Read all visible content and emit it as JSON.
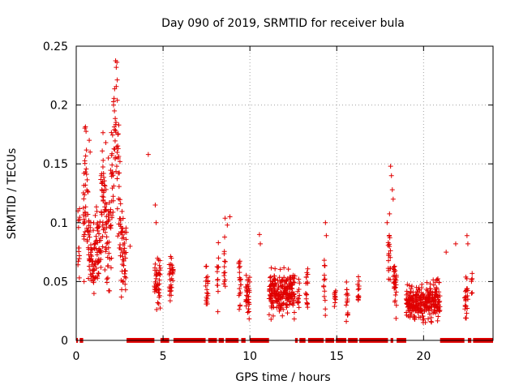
{
  "chart_data": {
    "type": "scatter",
    "title": "Day 090 of 2019, SRMTID for receiver bula",
    "xlabel": "GPS time / hours",
    "ylabel": "SRMTID / TECUs",
    "xlim": [
      0,
      24
    ],
    "ylim": [
      0,
      0.25
    ],
    "x_ticks": [
      0,
      5,
      10,
      15,
      20
    ],
    "x_tick_labels": [
      "0",
      "5",
      "10",
      "15",
      "20"
    ],
    "y_ticks": [
      0,
      0.05,
      0.1,
      0.15,
      0.2,
      0.25
    ],
    "y_tick_labels": [
      "0",
      "0.05",
      "0.1",
      "0.15",
      "0.2",
      "0.25"
    ],
    "grid": true,
    "marker": "+",
    "series_color": "#e00000",
    "envelope": [
      [
        0.0,
        0.078
      ],
      [
        0.25,
        0.085
      ],
      [
        0.4,
        0.1
      ],
      [
        0.55,
        0.13
      ],
      [
        0.7,
        0.09
      ],
      [
        0.9,
        0.06
      ],
      [
        1.1,
        0.07
      ],
      [
        1.4,
        0.09
      ],
      [
        1.6,
        0.13
      ],
      [
        1.8,
        0.08
      ],
      [
        1.95,
        0.1
      ],
      [
        2.15,
        0.16
      ],
      [
        2.3,
        0.18
      ],
      [
        2.45,
        0.12
      ],
      [
        2.6,
        0.075
      ],
      [
        2.8,
        0.07
      ],
      [
        2.9,
        0.065
      ],
      [
        4.4,
        0.05
      ],
      [
        4.6,
        0.05
      ],
      [
        5.0,
        0.045
      ],
      [
        5.5,
        0.05
      ],
      [
        6.5,
        0.055
      ],
      [
        7.5,
        0.045
      ],
      [
        8.0,
        0.055
      ],
      [
        8.5,
        0.065
      ],
      [
        8.9,
        0.08
      ],
      [
        9.2,
        0.06
      ],
      [
        9.6,
        0.04
      ],
      [
        10.0,
        0.04
      ],
      [
        10.5,
        0.045
      ],
      [
        10.9,
        0.04
      ],
      [
        11.0,
        0.04
      ],
      [
        12.5,
        0.04
      ],
      [
        12.9,
        0.035
      ],
      [
        13.4,
        0.045
      ],
      [
        13.8,
        0.055
      ],
      [
        14.2,
        0.05
      ],
      [
        14.7,
        0.035
      ],
      [
        15.3,
        0.03
      ],
      [
        15.8,
        0.035
      ],
      [
        16.3,
        0.04
      ],
      [
        16.7,
        0.045
      ],
      [
        17.0,
        0.06
      ],
      [
        17.3,
        0.07
      ],
      [
        17.7,
        0.065
      ],
      [
        18.0,
        0.08
      ],
      [
        18.3,
        0.05
      ],
      [
        18.6,
        0.035
      ],
      [
        18.8,
        0.03
      ],
      [
        18.9,
        0.03
      ],
      [
        20.8,
        0.035
      ],
      [
        21.2,
        0.04
      ],
      [
        21.6,
        0.045
      ],
      [
        22.0,
        0.035
      ],
      [
        22.3,
        0.03
      ],
      [
        22.6,
        0.045
      ],
      [
        22.8,
        0.05
      ]
    ],
    "outliers": [
      [
        2.15,
        0.2
      ],
      [
        2.2,
        0.195
      ],
      [
        4.15,
        0.158
      ],
      [
        4.55,
        0.115
      ],
      [
        4.6,
        0.1
      ],
      [
        8.85,
        0.105
      ],
      [
        8.7,
        0.098
      ],
      [
        10.55,
        0.09
      ],
      [
        10.6,
        0.082
      ],
      [
        14.35,
        0.1
      ],
      [
        14.4,
        0.089
      ],
      [
        18.1,
        0.148
      ],
      [
        18.15,
        0.14
      ],
      [
        18.2,
        0.128
      ],
      [
        18.25,
        0.12
      ],
      [
        17.9,
        0.1
      ],
      [
        0.75,
        0.17
      ],
      [
        0.8,
        0.16
      ],
      [
        1.5,
        0.161
      ],
      [
        1.55,
        0.153
      ],
      [
        1.85,
        0.155
      ],
      [
        2.45,
        0.183
      ],
      [
        2.4,
        0.175
      ],
      [
        22.5,
        0.089
      ],
      [
        22.55,
        0.082
      ],
      [
        21.85,
        0.082
      ],
      [
        21.3,
        0.075
      ],
      [
        0.1,
        0.11
      ],
      [
        3.1,
        0.08
      ],
      [
        0.45,
        0.05
      ]
    ],
    "data_gaps": [
      [
        0.0,
        0.1
      ],
      [
        0.2,
        0.4
      ],
      [
        2.9,
        4.5
      ],
      [
        4.85,
        5.35
      ],
      [
        5.6,
        7.45
      ],
      [
        7.6,
        8.1
      ],
      [
        8.2,
        8.5
      ],
      [
        8.6,
        9.35
      ],
      [
        9.5,
        9.75
      ],
      [
        10.0,
        11.1
      ],
      [
        12.6,
        12.75
      ],
      [
        12.85,
        13.2
      ],
      [
        13.35,
        14.25
      ],
      [
        14.35,
        14.85
      ],
      [
        14.95,
        15.55
      ],
      [
        15.65,
        16.2
      ],
      [
        16.3,
        17.95
      ],
      [
        18.1,
        18.25
      ],
      [
        18.45,
        19.0
      ],
      [
        20.95,
        22.35
      ],
      [
        22.55,
        22.75
      ],
      [
        22.85,
        24.0
      ]
    ]
  }
}
